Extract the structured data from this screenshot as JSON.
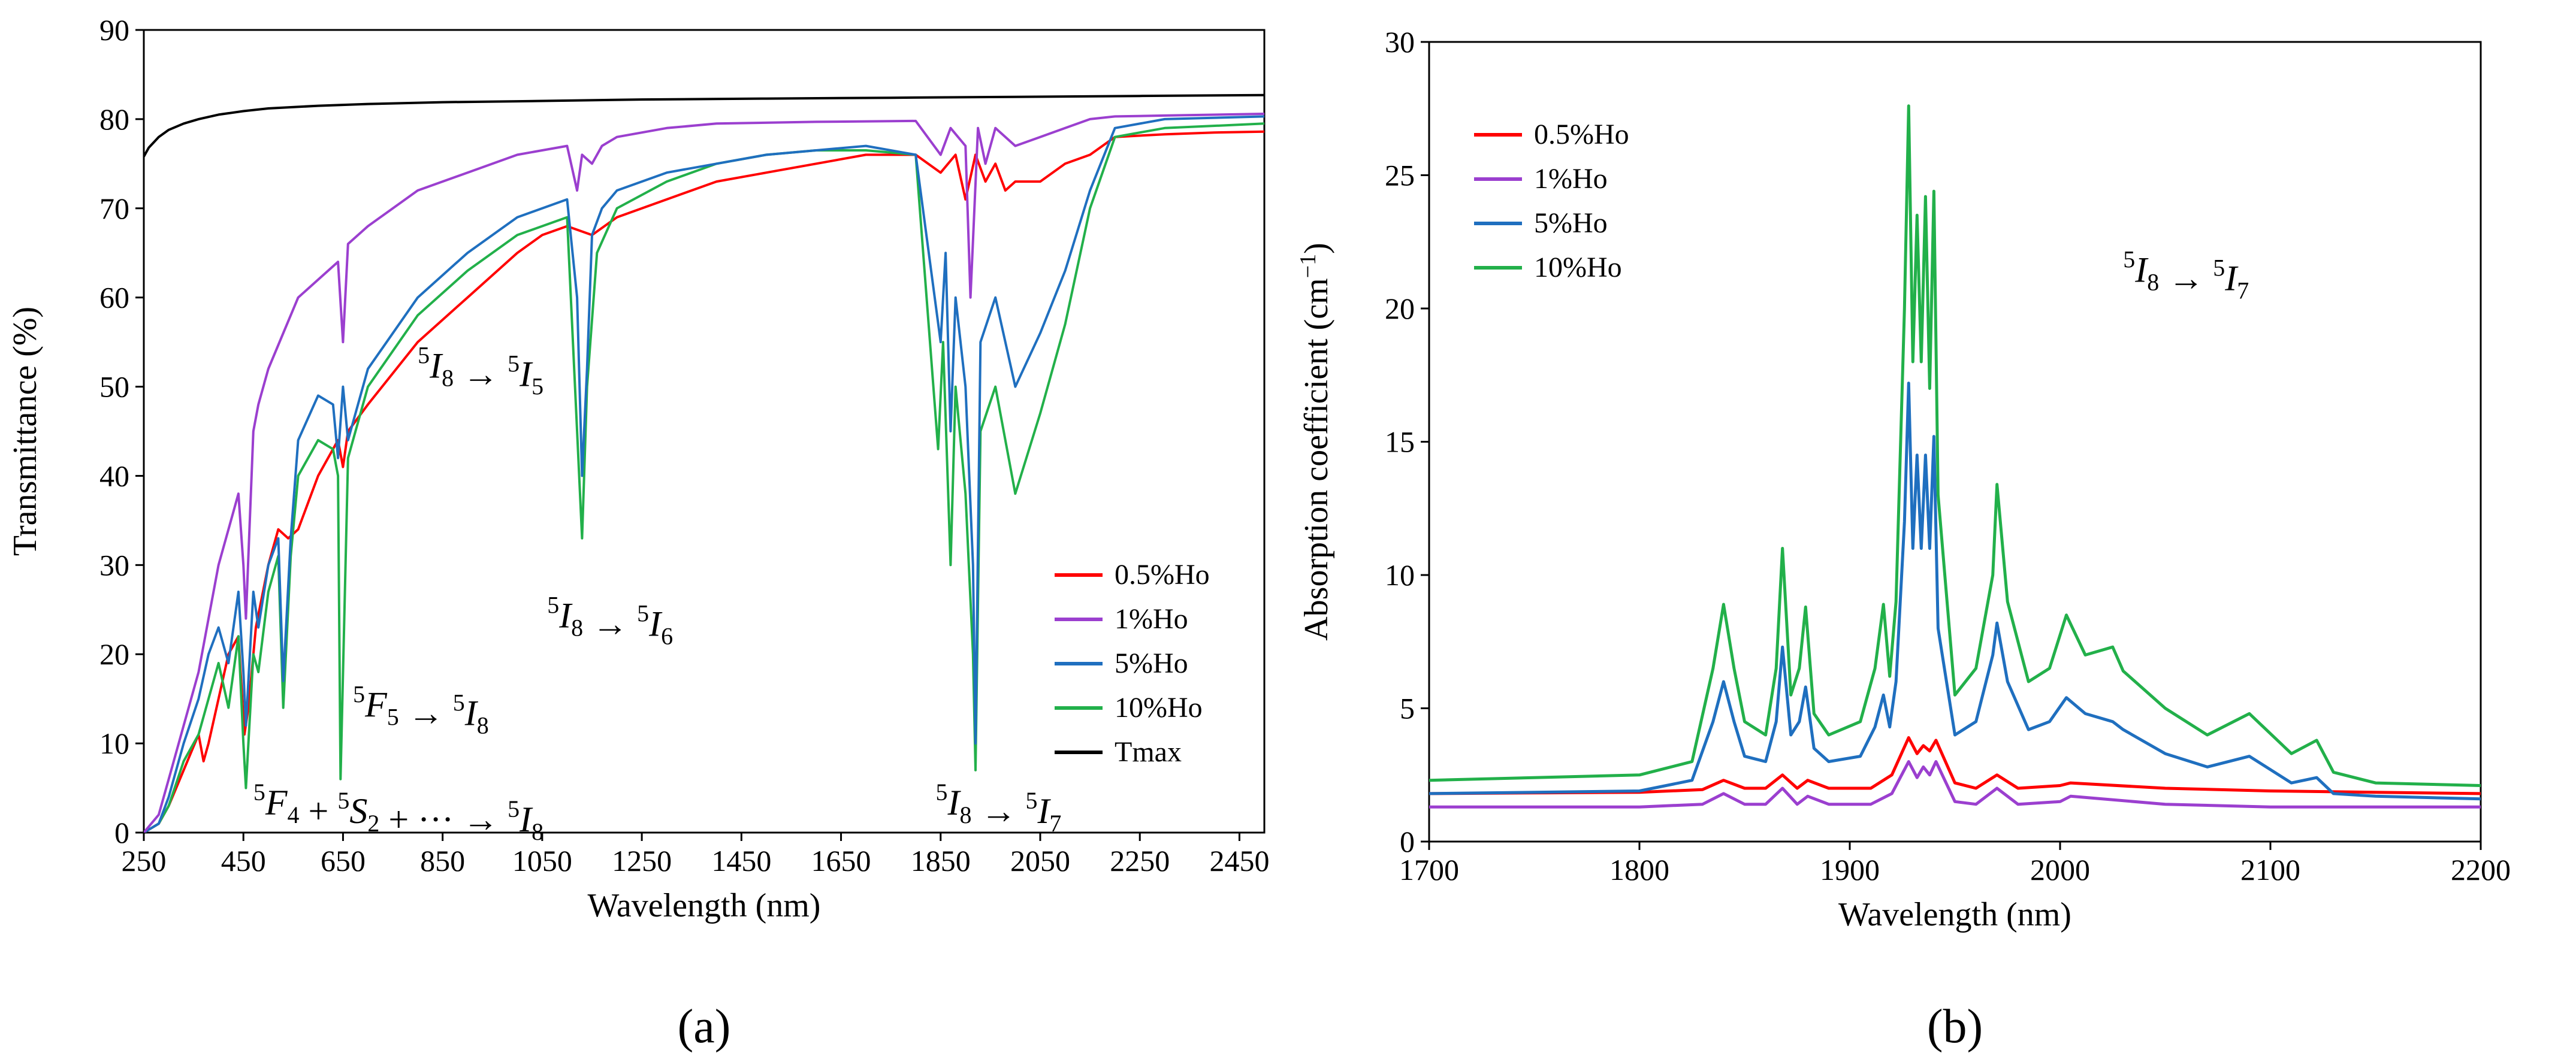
{
  "chart_data": [
    {
      "type": "line",
      "panel_label": "(a)",
      "xlabel": "Wavelength (nm)",
      "ylabel": "Transmittance (%)",
      "xlim": [
        250,
        2500
      ],
      "ylim": [
        0,
        90
      ],
      "xticks": [
        250,
        450,
        650,
        850,
        1050,
        1250,
        1450,
        1650,
        1850,
        2050,
        2250,
        2450
      ],
      "yticks": [
        0,
        10,
        20,
        30,
        40,
        50,
        60,
        70,
        80,
        90
      ],
      "legend": {
        "placement": "lower-right",
        "entries": [
          "0.5%Ho",
          "1%Ho",
          "5%Ho",
          "10%Ho",
          "Tmax"
        ]
      },
      "annotations": [
        {
          "id": "i8-i5",
          "parts": [
            "5",
            "I",
            "8",
            " → ",
            "5",
            "I",
            "5"
          ],
          "x": 800,
          "y": 51
        },
        {
          "id": "i8-i6",
          "parts": [
            "5",
            "I",
            "8",
            " → ",
            "5",
            "I",
            "6"
          ],
          "x": 1060,
          "y": 23
        },
        {
          "id": "f5-i8",
          "parts": [
            "5",
            "F",
            "5",
            " → ",
            "5",
            "I",
            "8"
          ],
          "x": 670,
          "y": 13
        },
        {
          "id": "f4-i8",
          "parts": [
            "5",
            "F",
            "4",
            " + ",
            "5",
            "S",
            "2",
            " + ··· → ",
            "5",
            "I",
            "8"
          ],
          "x": 470,
          "y": 2
        },
        {
          "id": "i8-i7",
          "parts": [
            "5",
            "I",
            "8",
            " → ",
            "5",
            "I",
            "7"
          ],
          "x": 1840,
          "y": 2
        }
      ],
      "series": [
        {
          "name": "Tmax",
          "color": "#000000",
          "x": [
            250,
            260,
            280,
            300,
            330,
            360,
            400,
            450,
            500,
            600,
            700,
            850,
            1000,
            1250,
            1500,
            1750,
            2000,
            2250,
            2500
          ],
          "y": [
            75.8,
            76.8,
            78.0,
            78.8,
            79.5,
            80.0,
            80.5,
            80.9,
            81.2,
            81.5,
            81.7,
            81.9,
            82.0,
            82.2,
            82.3,
            82.4,
            82.5,
            82.6,
            82.7
          ]
        },
        {
          "name": "0.5%Ho",
          "color": "#ff0000",
          "x": [
            250,
            280,
            300,
            330,
            360,
            370,
            380,
            400,
            420,
            440,
            452,
            460,
            475,
            500,
            520,
            540,
            560,
            600,
            640,
            650,
            660,
            700,
            800,
            900,
            1000,
            1050,
            1100,
            1150,
            1200,
            1300,
            1400,
            1500,
            1600,
            1700,
            1800,
            1850,
            1880,
            1900,
            1920,
            1940,
            1960,
            1980,
            2000,
            2050,
            2100,
            2150,
            2200,
            2300,
            2400,
            2500
          ],
          "y": [
            0,
            1,
            3,
            7,
            11,
            8,
            10,
            15,
            20,
            22,
            11,
            14,
            23,
            30,
            34,
            33,
            34,
            40,
            44,
            41,
            45,
            48,
            55,
            60,
            65,
            67,
            68,
            67,
            69,
            71,
            73,
            74,
            75,
            76,
            76,
            74,
            76,
            71,
            76,
            73,
            75,
            72,
            73,
            73,
            75,
            76,
            78,
            78.3,
            78.5,
            78.6
          ]
        },
        {
          "name": "1%Ho",
          "color": "#9b3fcf",
          "x": [
            250,
            280,
            300,
            330,
            360,
            380,
            400,
            420,
            440,
            450,
            455,
            470,
            480,
            500,
            530,
            560,
            600,
            640,
            650,
            660,
            700,
            800,
            900,
            1000,
            1100,
            1120,
            1130,
            1150,
            1170,
            1200,
            1300,
            1400,
            1600,
            1800,
            1850,
            1870,
            1900,
            1910,
            1925,
            1940,
            1960,
            2000,
            2050,
            2100,
            2150,
            2200,
            2300,
            2500
          ],
          "y": [
            0,
            2,
            6,
            12,
            18,
            24,
            30,
            34,
            38,
            30,
            24,
            45,
            48,
            52,
            56,
            60,
            62,
            64,
            55,
            66,
            68,
            72,
            74,
            76,
            77,
            72,
            76,
            75,
            77,
            78,
            79,
            79.5,
            79.7,
            79.8,
            76,
            79,
            77,
            60,
            79,
            75,
            79,
            77,
            78,
            79,
            80,
            80.3,
            80.4,
            80.6
          ]
        },
        {
          "name": "5%Ho",
          "color": "#1f6fbf",
          "x": [
            250,
            280,
            300,
            330,
            360,
            380,
            400,
            420,
            440,
            450,
            455,
            470,
            480,
            500,
            520,
            530,
            545,
            560,
            600,
            630,
            640,
            650,
            660,
            700,
            800,
            900,
            1000,
            1100,
            1120,
            1130,
            1140,
            1150,
            1170,
            1200,
            1300,
            1400,
            1500,
            1600,
            1700,
            1800,
            1850,
            1860,
            1870,
            1880,
            1900,
            1915,
            1920,
            1930,
            1960,
            2000,
            2050,
            2100,
            2150,
            2200,
            2300,
            2500
          ],
          "y": [
            0,
            1,
            4,
            10,
            15,
            20,
            23,
            19,
            27,
            18,
            12,
            27,
            23,
            30,
            33,
            17,
            33,
            44,
            49,
            48,
            42,
            50,
            44,
            52,
            60,
            65,
            69,
            71,
            60,
            40,
            52,
            67,
            70,
            72,
            74,
            75,
            76,
            76.5,
            77,
            76,
            55,
            65,
            45,
            60,
            50,
            30,
            10,
            55,
            60,
            50,
            56,
            63,
            72,
            79,
            80,
            80.3
          ]
        },
        {
          "name": "10%Ho",
          "color": "#22b04a",
          "x": [
            250,
            280,
            300,
            330,
            360,
            380,
            400,
            420,
            440,
            450,
            455,
            470,
            480,
            500,
            520,
            530,
            545,
            560,
            600,
            630,
            640,
            645,
            660,
            700,
            800,
            900,
            1000,
            1100,
            1120,
            1130,
            1140,
            1160,
            1200,
            1300,
            1400,
            1500,
            1600,
            1700,
            1800,
            1845,
            1855,
            1870,
            1880,
            1900,
            1915,
            1920,
            1930,
            1960,
            2000,
            2050,
            2100,
            2150,
            2200,
            2300,
            2500
          ],
          "y": [
            0,
            1,
            3,
            8,
            11,
            15,
            19,
            14,
            22,
            10,
            5,
            20,
            18,
            27,
            31,
            14,
            31,
            40,
            44,
            43,
            40,
            6,
            42,
            50,
            58,
            63,
            67,
            69,
            45,
            33,
            50,
            65,
            70,
            73,
            75,
            76,
            76.5,
            76.5,
            76,
            43,
            55,
            30,
            50,
            38,
            20,
            7,
            45,
            50,
            38,
            47,
            57,
            70,
            78,
            79,
            79.5
          ]
        }
      ]
    },
    {
      "type": "line",
      "panel_label": "(b)",
      "xlabel": "Wavelength (nm)",
      "ylabel": "Absorption coefficient (cm",
      "ylabel_sup": "−1",
      "ylabel_end": ")",
      "xlim": [
        1700,
        2200
      ],
      "ylim": [
        0,
        30
      ],
      "xticks": [
        1700,
        1800,
        1900,
        2000,
        2100,
        2200
      ],
      "yticks": [
        0,
        5,
        10,
        15,
        20,
        25,
        30
      ],
      "legend": {
        "placement": "top-left",
        "entries": [
          "0.5%Ho",
          "1%Ho",
          "5%Ho",
          "10%Ho"
        ]
      },
      "annotations": [
        {
          "id": "b-i8-i7",
          "parts": [
            "5",
            "I",
            "8",
            " → ",
            "5",
            "I",
            "7"
          ],
          "x": 2030,
          "y": 21
        }
      ],
      "series": [
        {
          "name": "0.5%Ho",
          "color": "#ff0000",
          "x": [
            1700,
            1800,
            1830,
            1840,
            1850,
            1860,
            1868,
            1875,
            1880,
            1890,
            1910,
            1920,
            1928,
            1932,
            1935,
            1938,
            1941,
            1950,
            1960,
            1970,
            1980,
            2000,
            2005,
            2050,
            2100,
            2150,
            2200
          ],
          "y": [
            1.8,
            1.85,
            1.95,
            2.3,
            2.0,
            2.0,
            2.5,
            2.0,
            2.3,
            2.0,
            2.0,
            2.5,
            3.9,
            3.3,
            3.6,
            3.4,
            3.8,
            2.2,
            2.0,
            2.5,
            2.0,
            2.1,
            2.2,
            2.0,
            1.9,
            1.85,
            1.8
          ]
        },
        {
          "name": "1%Ho",
          "color": "#9b3fcf",
          "x": [
            1700,
            1800,
            1830,
            1840,
            1850,
            1860,
            1868,
            1875,
            1880,
            1890,
            1910,
            1920,
            1928,
            1932,
            1935,
            1938,
            1941,
            1950,
            1960,
            1970,
            1980,
            2000,
            2005,
            2050,
            2100,
            2150,
            2200
          ],
          "y": [
            1.3,
            1.3,
            1.4,
            1.8,
            1.4,
            1.4,
            2.0,
            1.4,
            1.7,
            1.4,
            1.4,
            1.8,
            3.0,
            2.4,
            2.8,
            2.5,
            3.0,
            1.5,
            1.4,
            2.0,
            1.4,
            1.5,
            1.7,
            1.4,
            1.3,
            1.3,
            1.3
          ]
        },
        {
          "name": "5%Ho",
          "color": "#1f6fbf",
          "x": [
            1700,
            1800,
            1825,
            1835,
            1840,
            1845,
            1850,
            1860,
            1865,
            1868,
            1872,
            1876,
            1879,
            1883,
            1890,
            1905,
            1912,
            1916,
            1919,
            1922,
            1926,
            1928,
            1930,
            1932,
            1934,
            1936,
            1938,
            1940,
            1942,
            1950,
            1960,
            1968,
            1970,
            1975,
            1985,
            1995,
            2003,
            2012,
            2025,
            2030,
            2050,
            2070,
            2090,
            2110,
            2122,
            2130,
            2150,
            2200
          ],
          "y": [
            1.8,
            1.9,
            2.3,
            4.5,
            6.0,
            4.5,
            3.2,
            3.0,
            4.5,
            7.3,
            4.0,
            4.5,
            5.8,
            3.5,
            3.0,
            3.2,
            4.3,
            5.5,
            4.3,
            6.0,
            12,
            17.2,
            11,
            14.5,
            11,
            14.5,
            11,
            15.2,
            8,
            4.0,
            4.5,
            7.0,
            8.2,
            6.0,
            4.2,
            4.5,
            5.4,
            4.8,
            4.5,
            4.2,
            3.3,
            2.8,
            3.2,
            2.2,
            2.4,
            1.8,
            1.7,
            1.6
          ]
        },
        {
          "name": "10%Ho",
          "color": "#22b04a",
          "x": [
            1700,
            1750,
            1800,
            1825,
            1835,
            1840,
            1845,
            1850,
            1860,
            1865,
            1868,
            1872,
            1876,
            1879,
            1883,
            1890,
            1905,
            1912,
            1916,
            1919,
            1922,
            1926,
            1928,
            1930,
            1932,
            1934,
            1936,
            1938,
            1940,
            1942,
            1950,
            1960,
            1968,
            1970,
            1975,
            1985,
            1995,
            2003,
            2012,
            2025,
            2030,
            2050,
            2070,
            2090,
            2110,
            2122,
            2130,
            2150,
            2200
          ],
          "y": [
            2.3,
            2.4,
            2.5,
            3.0,
            6.5,
            8.9,
            6.5,
            4.5,
            4.0,
            6.5,
            11,
            5.5,
            6.5,
            8.8,
            4.8,
            4.0,
            4.5,
            6.5,
            8.9,
            6.2,
            9.0,
            20,
            27.6,
            18,
            23.5,
            18,
            24.2,
            17,
            24.4,
            13,
            5.5,
            6.5,
            10,
            13.4,
            9,
            6,
            6.5,
            8.5,
            7.0,
            7.3,
            6.4,
            5.0,
            4.0,
            4.8,
            3.3,
            3.8,
            2.6,
            2.2,
            2.1
          ]
        }
      ]
    }
  ]
}
